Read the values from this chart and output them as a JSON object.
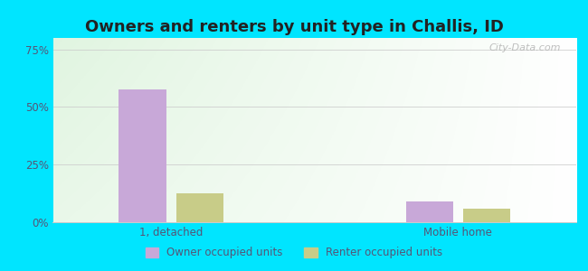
{
  "title": "Owners and renters by unit type in Challis, ID",
  "categories": [
    "1, detached",
    "Mobile home"
  ],
  "owner_values": [
    0.578,
    0.092
  ],
  "renter_values": [
    0.127,
    0.058
  ],
  "owner_color": "#c8a8d8",
  "renter_color": "#c8cc88",
  "bar_width": 0.28,
  "ylim": [
    0,
    0.8
  ],
  "yticks": [
    0.0,
    0.25,
    0.5,
    0.75
  ],
  "ytick_labels": [
    "0%",
    "25%",
    "50%",
    "75%"
  ],
  "background_outer": "#00e5ff",
  "grid_color": "#cccccc",
  "legend_owner": "Owner occupied units",
  "legend_renter": "Renter occupied units",
  "title_fontsize": 13,
  "watermark": "City-Data.com",
  "title_color": "#222222",
  "tick_color": "#555577",
  "group_centers": [
    1.0,
    2.7
  ],
  "xlim": [
    0.3,
    3.4
  ]
}
